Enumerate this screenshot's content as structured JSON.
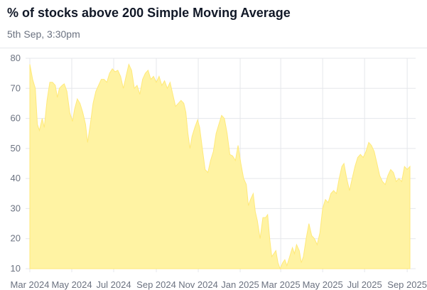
{
  "header": {
    "title": "% of stocks above 200 Simple Moving Average",
    "subtitle": "5th Sep, 3:30pm"
  },
  "colors": {
    "area_fill": "#fff3a3",
    "area_stroke": "#ffe97a",
    "grid": "#e5e7eb",
    "tick_text": "#6b7280"
  },
  "chart_data": {
    "type": "area",
    "title": "% of stocks above 200 Simple Moving Average",
    "subtitle": "5th Sep, 3:30pm",
    "xlabel": "",
    "ylabel": "",
    "grid": true,
    "legend": "none",
    "ylim": [
      10,
      80
    ],
    "yticks": [
      10,
      20,
      30,
      40,
      50,
      60,
      70,
      80
    ],
    "xticks": [
      {
        "label": "Mar 2024",
        "x": "2024-03-01"
      },
      {
        "label": "May 2024",
        "x": "2024-05-01"
      },
      {
        "label": "Jul 2024",
        "x": "2024-07-01"
      },
      {
        "label": "Sep 2024",
        "x": "2024-09-01"
      },
      {
        "label": "Nov 2024",
        "x": "2024-11-01"
      },
      {
        "label": "Jan 2025",
        "x": "2025-01-01"
      },
      {
        "label": "Mar 2025",
        "x": "2025-03-01"
      },
      {
        "label": "May 2025",
        "x": "2025-05-01"
      },
      {
        "label": "Jul 2025",
        "x": "2025-07-01"
      },
      {
        "label": "Sep 2025",
        "x": "2025-09-01"
      }
    ],
    "xlim": [
      "2024-03-01",
      "2025-09-05"
    ],
    "series": [
      {
        "name": "",
        "points": [
          [
            "2024-03-01",
            78
          ],
          [
            "2024-03-05",
            73
          ],
          [
            "2024-03-09",
            70
          ],
          [
            "2024-03-12",
            58
          ],
          [
            "2024-03-15",
            56
          ],
          [
            "2024-03-19",
            60
          ],
          [
            "2024-03-22",
            57
          ],
          [
            "2024-03-26",
            66
          ],
          [
            "2024-03-30",
            72
          ],
          [
            "2024-04-03",
            72
          ],
          [
            "2024-04-07",
            71
          ],
          [
            "2024-04-10",
            67
          ],
          [
            "2024-04-13",
            70
          ],
          [
            "2024-04-17",
            71
          ],
          [
            "2024-04-20",
            71.5
          ],
          [
            "2024-04-24",
            69
          ],
          [
            "2024-04-28",
            62
          ],
          [
            "2024-05-02",
            59
          ],
          [
            "2024-05-05",
            63
          ],
          [
            "2024-05-09",
            66.5
          ],
          [
            "2024-05-13",
            65
          ],
          [
            "2024-05-17",
            62
          ],
          [
            "2024-05-21",
            58
          ],
          [
            "2024-05-24",
            52
          ],
          [
            "2024-05-28",
            58
          ],
          [
            "2024-06-01",
            65
          ],
          [
            "2024-06-05",
            69
          ],
          [
            "2024-06-09",
            71
          ],
          [
            "2024-06-13",
            73
          ],
          [
            "2024-06-17",
            73
          ],
          [
            "2024-06-21",
            72
          ],
          [
            "2024-06-25",
            75
          ],
          [
            "2024-06-29",
            76.5
          ],
          [
            "2024-07-03",
            75.5
          ],
          [
            "2024-07-07",
            76
          ],
          [
            "2024-07-11",
            74
          ],
          [
            "2024-07-15",
            70
          ],
          [
            "2024-07-19",
            74
          ],
          [
            "2024-07-23",
            78
          ],
          [
            "2024-07-27",
            76
          ],
          [
            "2024-07-31",
            70
          ],
          [
            "2024-08-04",
            71
          ],
          [
            "2024-08-08",
            68
          ],
          [
            "2024-08-12",
            73
          ],
          [
            "2024-08-16",
            75
          ],
          [
            "2024-08-20",
            76
          ],
          [
            "2024-08-24",
            73
          ],
          [
            "2024-08-28",
            74
          ],
          [
            "2024-09-01",
            72
          ],
          [
            "2024-09-05",
            74
          ],
          [
            "2024-09-09",
            71
          ],
          [
            "2024-09-13",
            72.5
          ],
          [
            "2024-09-17",
            70
          ],
          [
            "2024-09-21",
            72
          ],
          [
            "2024-09-25",
            68
          ],
          [
            "2024-09-29",
            64
          ],
          [
            "2024-10-03",
            65
          ],
          [
            "2024-10-07",
            66
          ],
          [
            "2024-10-11",
            65
          ],
          [
            "2024-10-14",
            62
          ],
          [
            "2024-10-17",
            55
          ],
          [
            "2024-10-20",
            50
          ],
          [
            "2024-10-23",
            54
          ],
          [
            "2024-10-27",
            57
          ],
          [
            "2024-10-31",
            59.5
          ],
          [
            "2024-11-03",
            57
          ],
          [
            "2024-11-07",
            50
          ],
          [
            "2024-11-11",
            43
          ],
          [
            "2024-11-15",
            42
          ],
          [
            "2024-11-19",
            46
          ],
          [
            "2024-11-23",
            49
          ],
          [
            "2024-11-27",
            55
          ],
          [
            "2024-12-01",
            58
          ],
          [
            "2024-12-05",
            61
          ],
          [
            "2024-12-09",
            60
          ],
          [
            "2024-12-13",
            55
          ],
          [
            "2024-12-17",
            48
          ],
          [
            "2024-12-21",
            47.5
          ],
          [
            "2024-12-25",
            46
          ],
          [
            "2024-12-29",
            51
          ],
          [
            "2025-01-02",
            45
          ],
          [
            "2025-01-06",
            40
          ],
          [
            "2025-01-10",
            38
          ],
          [
            "2025-01-13",
            31
          ],
          [
            "2025-01-16",
            33
          ],
          [
            "2025-01-20",
            35
          ],
          [
            "2025-01-23",
            29
          ],
          [
            "2025-01-26",
            26
          ],
          [
            "2025-01-30",
            20
          ],
          [
            "2025-02-03",
            27
          ],
          [
            "2025-02-07",
            27
          ],
          [
            "2025-02-10",
            28
          ],
          [
            "2025-02-13",
            20
          ],
          [
            "2025-02-16",
            14
          ],
          [
            "2025-02-19",
            15
          ],
          [
            "2025-02-22",
            16
          ],
          [
            "2025-02-25",
            12
          ],
          [
            "2025-02-28",
            10
          ],
          [
            "2025-03-04",
            12
          ],
          [
            "2025-03-07",
            13
          ],
          [
            "2025-03-10",
            11
          ],
          [
            "2025-03-14",
            14
          ],
          [
            "2025-03-18",
            17
          ],
          [
            "2025-03-21",
            15
          ],
          [
            "2025-03-24",
            18
          ],
          [
            "2025-03-28",
            16
          ],
          [
            "2025-03-31",
            12
          ],
          [
            "2025-04-03",
            14
          ],
          [
            "2025-04-07",
            20
          ],
          [
            "2025-04-11",
            25
          ],
          [
            "2025-04-15",
            21
          ],
          [
            "2025-04-19",
            20
          ],
          [
            "2025-04-23",
            18
          ],
          [
            "2025-04-27",
            22
          ],
          [
            "2025-05-01",
            30
          ],
          [
            "2025-05-05",
            33
          ],
          [
            "2025-05-09",
            32
          ],
          [
            "2025-05-13",
            35
          ],
          [
            "2025-05-17",
            36
          ],
          [
            "2025-05-21",
            35
          ],
          [
            "2025-05-25",
            40
          ],
          [
            "2025-05-29",
            44
          ],
          [
            "2025-06-01",
            45
          ],
          [
            "2025-06-05",
            40
          ],
          [
            "2025-06-09",
            36
          ],
          [
            "2025-06-13",
            40
          ],
          [
            "2025-06-17",
            44
          ],
          [
            "2025-06-21",
            47
          ],
          [
            "2025-06-25",
            48
          ],
          [
            "2025-06-29",
            47
          ],
          [
            "2025-07-03",
            49
          ],
          [
            "2025-07-07",
            52
          ],
          [
            "2025-07-11",
            51
          ],
          [
            "2025-07-15",
            49
          ],
          [
            "2025-07-19",
            45
          ],
          [
            "2025-07-23",
            41
          ],
          [
            "2025-07-27",
            39
          ],
          [
            "2025-07-31",
            38
          ],
          [
            "2025-08-04",
            41
          ],
          [
            "2025-08-08",
            43
          ],
          [
            "2025-08-12",
            42
          ],
          [
            "2025-08-16",
            39
          ],
          [
            "2025-08-20",
            40
          ],
          [
            "2025-08-24",
            39
          ],
          [
            "2025-08-28",
            44
          ],
          [
            "2025-09-01",
            43
          ],
          [
            "2025-09-05",
            44
          ]
        ]
      }
    ]
  }
}
